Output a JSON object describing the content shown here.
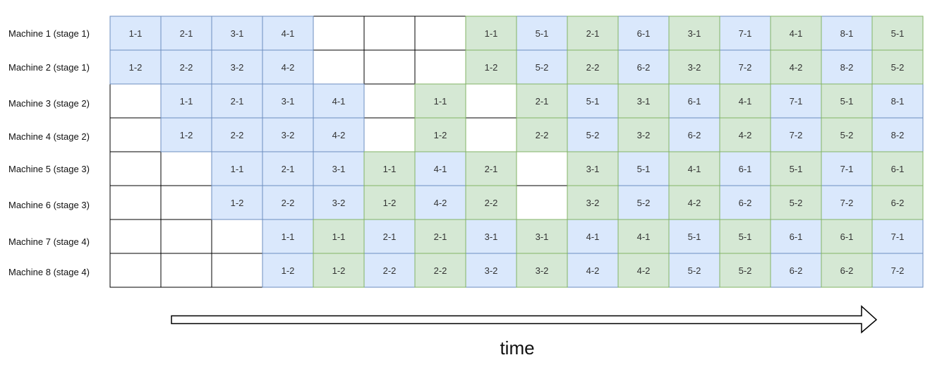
{
  "colors": {
    "blue_fill": "#dae8fc",
    "blue_stroke": "#6c8ebf",
    "green_fill": "#d5e8d4",
    "green_stroke": "#82b366",
    "empty_fill": "#ffffff",
    "empty_stroke": "#000000"
  },
  "time_label": "time",
  "rows": [
    {
      "label": "Machine 1 (stage 1)",
      "cells": [
        [
          "b",
          "1-1"
        ],
        [
          "b",
          "2-1"
        ],
        [
          "b",
          "3-1"
        ],
        [
          "b",
          "4-1"
        ],
        [
          "e",
          ""
        ],
        [
          "e",
          ""
        ],
        [
          "e",
          ""
        ],
        [
          "g",
          "1-1"
        ],
        [
          "b",
          "5-1"
        ],
        [
          "g",
          "2-1"
        ],
        [
          "b",
          "6-1"
        ],
        [
          "g",
          "3-1"
        ],
        [
          "b",
          "7-1"
        ],
        [
          "g",
          "4-1"
        ],
        [
          "b",
          "8-1"
        ],
        [
          "g",
          "5-1"
        ]
      ]
    },
    {
      "label": "Machine 2 (stage 1)",
      "cells": [
        [
          "b",
          "1-2"
        ],
        [
          "b",
          "2-2"
        ],
        [
          "b",
          "3-2"
        ],
        [
          "b",
          "4-2"
        ],
        [
          "e",
          ""
        ],
        [
          "e",
          ""
        ],
        [
          "e",
          ""
        ],
        [
          "g",
          "1-2"
        ],
        [
          "b",
          "5-2"
        ],
        [
          "g",
          "2-2"
        ],
        [
          "b",
          "6-2"
        ],
        [
          "g",
          "3-2"
        ],
        [
          "b",
          "7-2"
        ],
        [
          "g",
          "4-2"
        ],
        [
          "b",
          "8-2"
        ],
        [
          "g",
          "5-2"
        ]
      ]
    },
    {
      "label": "Machine 3 (stage 2)",
      "cells": [
        [
          "e",
          ""
        ],
        [
          "b",
          "1-1"
        ],
        [
          "b",
          "2-1"
        ],
        [
          "b",
          "3-1"
        ],
        [
          "b",
          "4-1"
        ],
        [
          "e",
          ""
        ],
        [
          "g",
          "1-1"
        ],
        [
          "e",
          ""
        ],
        [
          "g",
          "2-1"
        ],
        [
          "b",
          "5-1"
        ],
        [
          "g",
          "3-1"
        ],
        [
          "b",
          "6-1"
        ],
        [
          "g",
          "4-1"
        ],
        [
          "b",
          "7-1"
        ],
        [
          "g",
          "5-1"
        ],
        [
          "b",
          "8-1"
        ]
      ]
    },
    {
      "label": "Machine 4 (stage 2)",
      "cells": [
        [
          "e",
          ""
        ],
        [
          "b",
          "1-2"
        ],
        [
          "b",
          "2-2"
        ],
        [
          "b",
          "3-2"
        ],
        [
          "b",
          "4-2"
        ],
        [
          "e",
          ""
        ],
        [
          "g",
          "1-2"
        ],
        [
          "e",
          ""
        ],
        [
          "g",
          "2-2"
        ],
        [
          "b",
          "5-2"
        ],
        [
          "g",
          "3-2"
        ],
        [
          "b",
          "6-2"
        ],
        [
          "g",
          "4-2"
        ],
        [
          "b",
          "7-2"
        ],
        [
          "g",
          "5-2"
        ],
        [
          "b",
          "8-2"
        ]
      ]
    },
    {
      "label": "Machine 5 (stage 3)",
      "cells": [
        [
          "e",
          ""
        ],
        [
          "e",
          ""
        ],
        [
          "b",
          "1-1"
        ],
        [
          "b",
          "2-1"
        ],
        [
          "b",
          "3-1"
        ],
        [
          "g",
          "1-1"
        ],
        [
          "b",
          "4-1"
        ],
        [
          "g",
          "2-1"
        ],
        [
          "e",
          ""
        ],
        [
          "g",
          "3-1"
        ],
        [
          "b",
          "5-1"
        ],
        [
          "g",
          "4-1"
        ],
        [
          "b",
          "6-1"
        ],
        [
          "g",
          "5-1"
        ],
        [
          "b",
          "7-1"
        ],
        [
          "g",
          "6-1"
        ]
      ]
    },
    {
      "label": "Machine 6 (stage 3)",
      "cells": [
        [
          "e",
          ""
        ],
        [
          "e",
          ""
        ],
        [
          "b",
          "1-2"
        ],
        [
          "b",
          "2-2"
        ],
        [
          "b",
          "3-2"
        ],
        [
          "g",
          "1-2"
        ],
        [
          "b",
          "4-2"
        ],
        [
          "g",
          "2-2"
        ],
        [
          "e",
          ""
        ],
        [
          "g",
          "3-2"
        ],
        [
          "b",
          "5-2"
        ],
        [
          "g",
          "4-2"
        ],
        [
          "b",
          "6-2"
        ],
        [
          "g",
          "5-2"
        ],
        [
          "b",
          "7-2"
        ],
        [
          "g",
          "6-2"
        ]
      ]
    },
    {
      "label": "Machine 7 (stage 4)",
      "cells": [
        [
          "e",
          ""
        ],
        [
          "e",
          ""
        ],
        [
          "e",
          ""
        ],
        [
          "b",
          "1-1"
        ],
        [
          "g",
          "1-1"
        ],
        [
          "b",
          "2-1"
        ],
        [
          "g",
          "2-1"
        ],
        [
          "b",
          "3-1"
        ],
        [
          "g",
          "3-1"
        ],
        [
          "b",
          "4-1"
        ],
        [
          "g",
          "4-1"
        ],
        [
          "b",
          "5-1"
        ],
        [
          "g",
          "5-1"
        ],
        [
          "b",
          "6-1"
        ],
        [
          "g",
          "6-1"
        ],
        [
          "b",
          "7-1"
        ]
      ]
    },
    {
      "label": "Machine 8 (stage 4)",
      "cells": [
        [
          "e",
          ""
        ],
        [
          "e",
          ""
        ],
        [
          "e",
          ""
        ],
        [
          "b",
          "1-2"
        ],
        [
          "g",
          "1-2"
        ],
        [
          "b",
          "2-2"
        ],
        [
          "g",
          "2-2"
        ],
        [
          "b",
          "3-2"
        ],
        [
          "g",
          "3-2"
        ],
        [
          "b",
          "4-2"
        ],
        [
          "g",
          "4-2"
        ],
        [
          "b",
          "5-2"
        ],
        [
          "g",
          "5-2"
        ],
        [
          "b",
          "6-2"
        ],
        [
          "g",
          "6-2"
        ],
        [
          "b",
          "7-2"
        ]
      ]
    }
  ]
}
